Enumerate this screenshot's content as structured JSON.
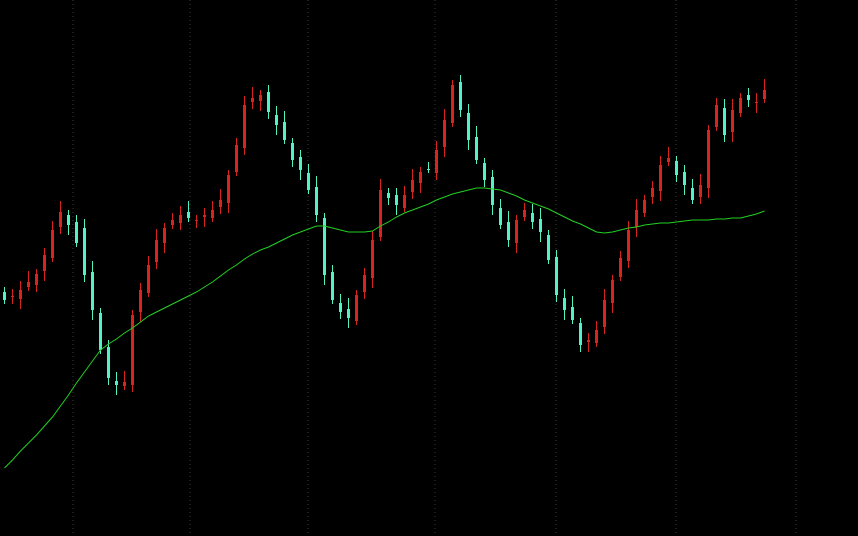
{
  "chart_data": {
    "type": "candlestick",
    "ylim": [
      0,
      536
    ],
    "up_color": "#d8241e",
    "down_color": "#54f0c8",
    "open": [
      244,
      239,
      237,
      249,
      251,
      265,
      278,
      309,
      321,
      314,
      308,
      264,
      223,
      189,
      155,
      150,
      151,
      224,
      243,
      274,
      293,
      311,
      313,
      324,
      315,
      319,
      318,
      329,
      333,
      364,
      388,
      434,
      435,
      444,
      421,
      414,
      393,
      379,
      363,
      349,
      318,
      264,
      233,
      227,
      215,
      244,
      258,
      299,
      343,
      341,
      328,
      344,
      353,
      367,
      363,
      389,
      413,
      454,
      423,
      399,
      373,
      359,
      328,
      314,
      293,
      319,
      323,
      317,
      301,
      279,
      238,
      229,
      213,
      194,
      193,
      209,
      233,
      259,
      275,
      309,
      323,
      339,
      345,
      374,
      375,
      364,
      348,
      339,
      348,
      409,
      428,
      404,
      423,
      441,
      433,
      437
    ],
    "high": [
      249,
      247,
      255,
      265,
      267,
      288,
      315,
      335,
      326,
      321,
      317,
      275,
      228,
      196,
      164,
      165,
      226,
      253,
      280,
      307,
      313,
      323,
      330,
      335,
      321,
      328,
      335,
      347,
      366,
      398,
      440,
      449,
      446,
      451,
      430,
      425,
      398,
      386,
      372,
      360,
      323,
      271,
      242,
      238,
      246,
      268,
      305,
      357,
      348,
      348,
      350,
      367,
      369,
      374,
      395,
      427,
      456,
      461,
      432,
      410,
      378,
      366,
      337,
      325,
      321,
      333,
      332,
      328,
      306,
      286,
      247,
      240,
      218,
      203,
      215,
      247,
      261,
      285,
      315,
      337,
      341,
      355,
      380,
      389,
      380,
      371,
      357,
      362,
      411,
      438,
      437,
      437,
      443,
      448,
      443,
      457
    ],
    "low": [
      232,
      232,
      227,
      245,
      244,
      255,
      274,
      302,
      301,
      289,
      254,
      216,
      182,
      151,
      141,
      146,
      144,
      214,
      239,
      267,
      283,
      307,
      306,
      314,
      308,
      309,
      314,
      322,
      323,
      360,
      381,
      427,
      425,
      417,
      401,
      392,
      369,
      356,
      342,
      314,
      251,
      232,
      217,
      208,
      211,
      237,
      248,
      295,
      331,
      321,
      324,
      337,
      343,
      363,
      356,
      379,
      409,
      419,
      386,
      372,
      349,
      321,
      307,
      289,
      283,
      315,
      307,
      294,
      272,
      234,
      216,
      212,
      184,
      184,
      189,
      202,
      223,
      255,
      268,
      299,
      319,
      332,
      335,
      370,
      354,
      341,
      332,
      332,
      338,
      405,
      394,
      394,
      419,
      429,
      423,
      433
    ],
    "close": [
      236,
      240,
      246,
      254,
      262,
      281,
      306,
      324,
      311,
      293,
      261,
      226,
      186,
      158,
      151,
      154,
      221,
      246,
      271,
      296,
      308,
      316,
      321,
      318,
      316,
      321,
      326,
      336,
      361,
      391,
      431,
      438,
      441,
      424,
      411,
      396,
      376,
      366,
      346,
      321,
      261,
      236,
      224,
      218,
      241,
      261,
      296,
      346,
      338,
      331,
      341,
      356,
      364,
      366,
      386,
      416,
      451,
      426,
      396,
      376,
      356,
      331,
      311,
      296,
      316,
      326,
      314,
      304,
      276,
      241,
      226,
      216,
      191,
      196,
      206,
      236,
      256,
      278,
      306,
      326,
      336,
      348,
      371,
      378,
      361,
      351,
      336,
      351,
      406,
      431,
      401,
      426,
      438,
      436,
      434,
      446
    ],
    "overlay": {
      "type": "line",
      "color": "#22d022",
      "values": [
        68,
        76,
        85,
        93,
        101,
        110,
        119,
        130,
        141,
        153,
        164,
        175,
        186,
        192,
        197,
        203,
        208,
        214,
        220,
        224,
        228,
        232,
        236,
        240,
        244,
        249,
        254,
        260,
        266,
        271,
        277,
        282,
        286,
        289,
        293,
        297,
        301,
        304,
        307,
        310,
        310,
        308,
        306,
        304,
        304,
        304,
        305,
        310,
        314,
        319,
        323,
        326,
        329,
        332,
        336,
        339,
        342,
        344,
        346,
        348,
        348,
        347,
        346,
        343,
        340,
        336,
        333,
        330,
        327,
        323,
        319,
        315,
        312,
        308,
        304,
        303,
        304,
        306,
        308,
        309,
        311,
        312,
        313,
        313,
        314,
        315,
        316,
        316,
        316,
        317,
        317,
        318,
        318,
        320,
        322,
        325
      ]
    }
  }
}
